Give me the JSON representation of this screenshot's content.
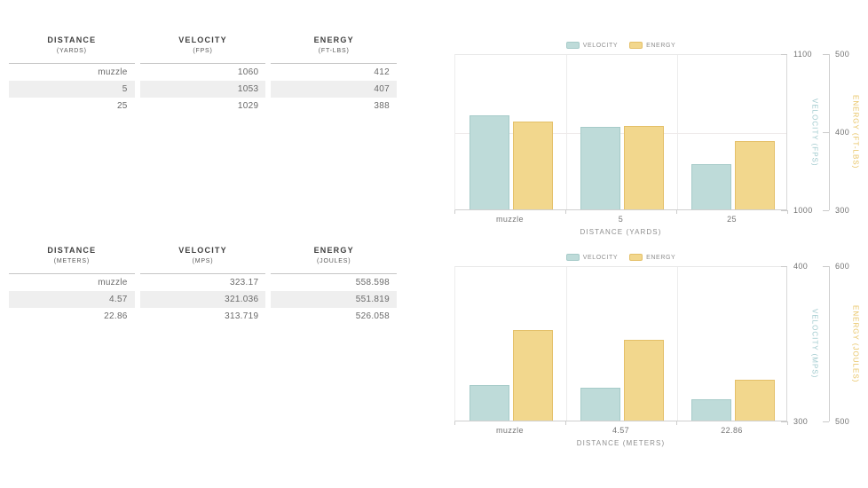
{
  "page": {
    "background": "#ffffff"
  },
  "colors": {
    "velocity_fill": "#bedbd9",
    "velocity_stroke": "#a6cbc9",
    "energy_fill": "#f2d78d",
    "energy_stroke": "#e4c069",
    "table_stripe": "#efefef"
  },
  "tables": [
    {
      "name": "yards-table",
      "columns": [
        {
          "label": "DISTANCE",
          "unit": "(YARDS)"
        },
        {
          "label": "VELOCITY",
          "unit": "(FPS)"
        },
        {
          "label": "ENERGY",
          "unit": "(FT-LBS)"
        }
      ],
      "rows": [
        [
          "muzzle",
          "1060",
          "412"
        ],
        [
          "5",
          "1053",
          "407"
        ],
        [
          "25",
          "1029",
          "388"
        ]
      ]
    },
    {
      "name": "meters-table",
      "columns": [
        {
          "label": "DISTANCE",
          "unit": "(METERS)"
        },
        {
          "label": "VELOCITY",
          "unit": "(MPS)"
        },
        {
          "label": "ENERGY",
          "unit": "(JOULES)"
        }
      ],
      "rows": [
        [
          "muzzle",
          "323.17",
          "558.598"
        ],
        [
          "4.57",
          "321.036",
          "551.819"
        ],
        [
          "22.86",
          "313.719",
          "526.058"
        ]
      ]
    }
  ],
  "chart_data": [
    {
      "type": "bar",
      "categories": [
        "muzzle",
        "5",
        "25"
      ],
      "series": [
        {
          "name": "VELOCITY",
          "axis": "left",
          "values": [
            1060,
            1053,
            1029
          ],
          "fill": "#bedbd9",
          "stroke": "#a6cbc9"
        },
        {
          "name": "ENERGY",
          "axis": "right",
          "values": [
            412,
            407,
            388
          ],
          "fill": "#f2d78d",
          "stroke": "#e4c069"
        }
      ],
      "xlabel": "DISTANCE (YARDS)",
      "legend": {
        "position": "top",
        "entries": [
          "VELOCITY",
          "ENERGY"
        ]
      },
      "left_axis": {
        "label": "VELOCITY (FPS)",
        "min": 1000,
        "max": 1100,
        "ticks": [
          1100,
          1000
        ],
        "color": "#9fc9cd"
      },
      "right_axis": {
        "label": "ENERGY (FT-LBS)",
        "min": 300,
        "max": 500,
        "ticks": [
          500,
          400,
          300
        ],
        "color": "#e8c363"
      },
      "grid": {
        "vertical": true,
        "horizontal": true
      }
    },
    {
      "type": "bar",
      "categories": [
        "muzzle",
        "4.57",
        "22.86"
      ],
      "series": [
        {
          "name": "VELOCITY",
          "axis": "left",
          "values": [
            323.17,
            321.036,
            313.719
          ],
          "fill": "#bedbd9",
          "stroke": "#a6cbc9"
        },
        {
          "name": "ENERGY",
          "axis": "right",
          "values": [
            558.598,
            551.819,
            526.058
          ],
          "fill": "#f2d78d",
          "stroke": "#e4c069"
        }
      ],
      "xlabel": "DISTANCE (METERS)",
      "legend": {
        "position": "top",
        "entries": [
          "VELOCITY",
          "ENERGY"
        ]
      },
      "left_axis": {
        "label": "VELOCITY (MPS)",
        "min": 300,
        "max": 400,
        "ticks": [
          400,
          300
        ],
        "color": "#9fc9cd"
      },
      "right_axis": {
        "label": "ENERGY (JOULES)",
        "min": 500,
        "max": 600,
        "ticks": [
          600,
          500
        ],
        "color": "#e8c363"
      },
      "grid": {
        "vertical": true,
        "horizontal": false
      }
    }
  ]
}
